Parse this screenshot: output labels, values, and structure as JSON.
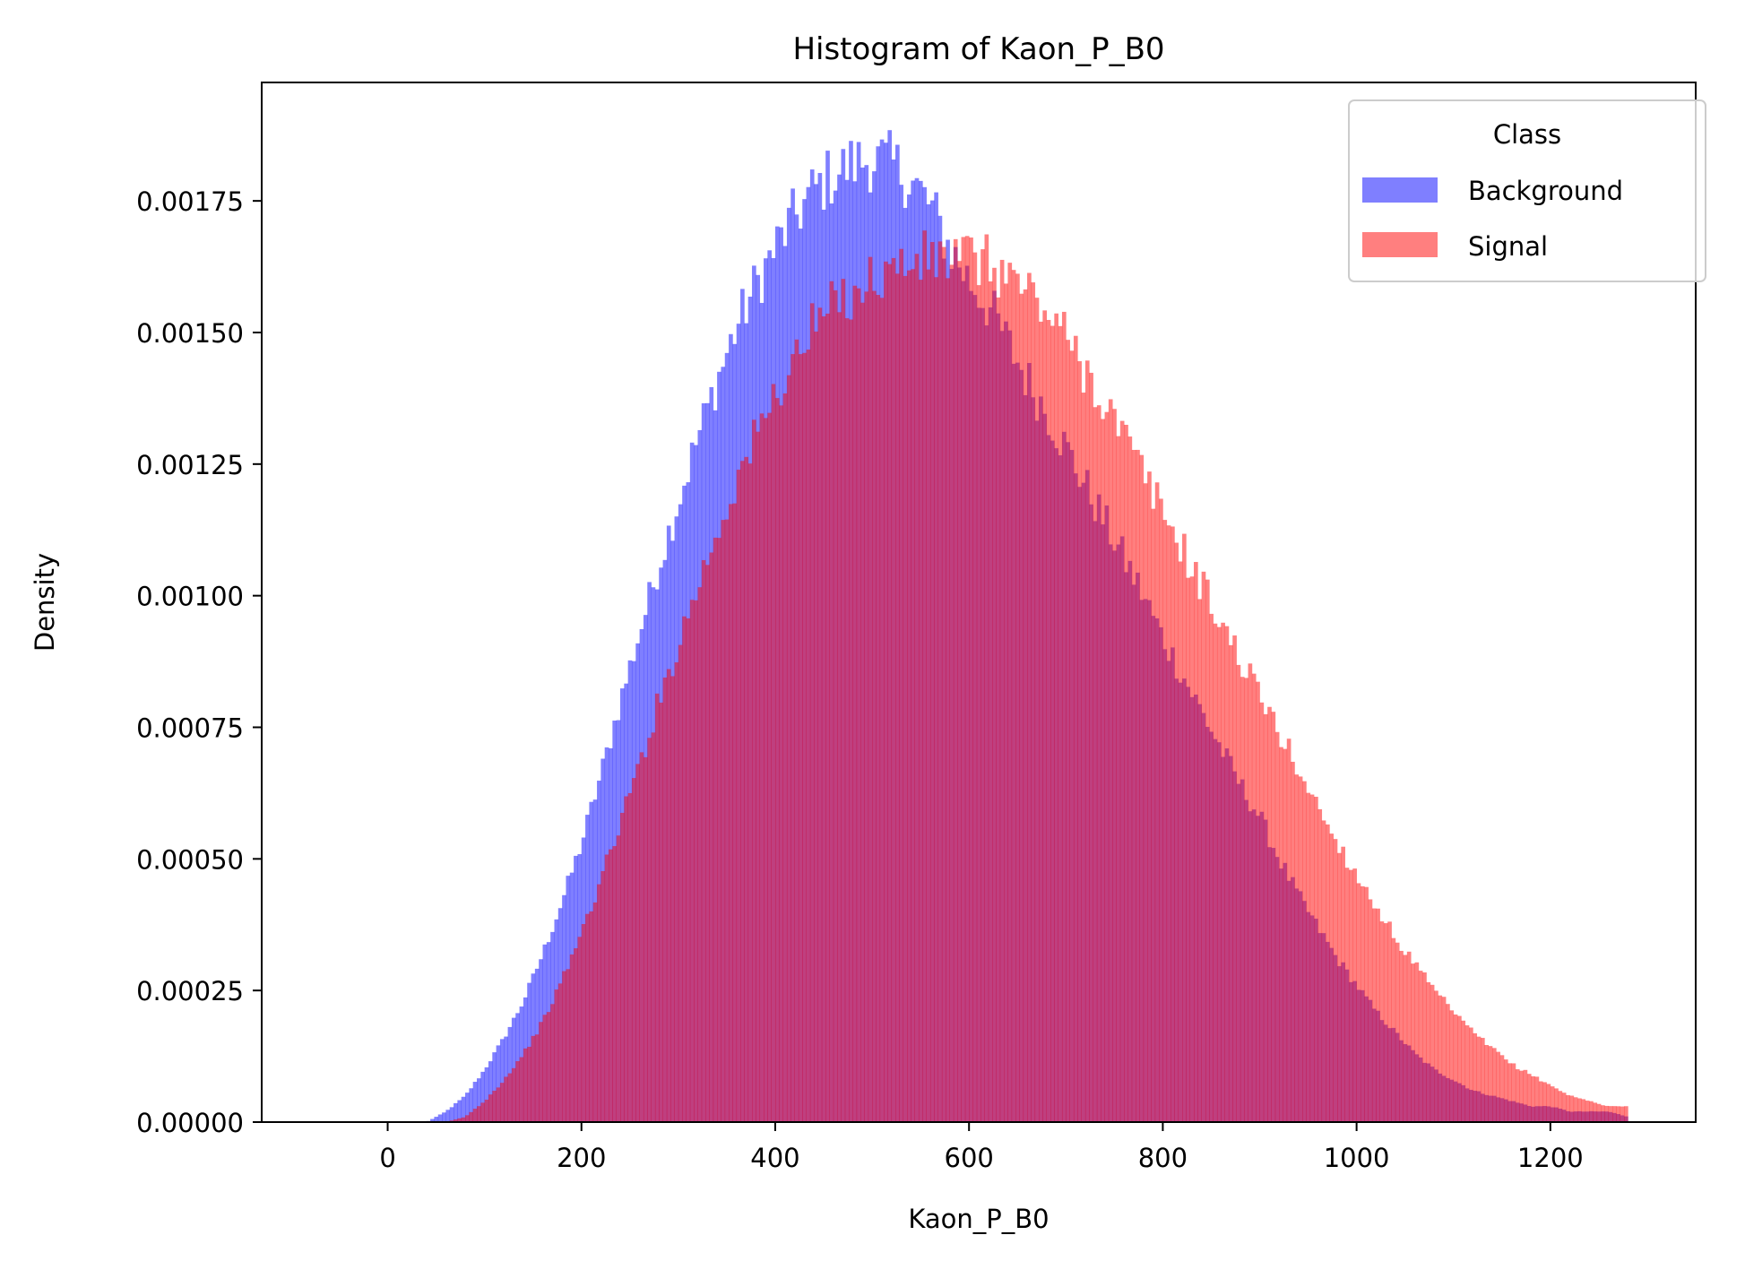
{
  "chart_data": {
    "type": "histogram",
    "title": "Histogram of Kaon_P_B0",
    "xlabel": "Kaon_P_B0",
    "ylabel": "Density",
    "xlim": [
      -130,
      1350
    ],
    "ylim": [
      0,
      0.001975
    ],
    "x_ticks": [
      0,
      200,
      400,
      600,
      800,
      1000,
      1200
    ],
    "x_tick_labels": [
      "0",
      "200",
      "400",
      "600",
      "800",
      "1000",
      "1200"
    ],
    "y_ticks": [
      0,
      0.00025,
      0.0005,
      0.00075,
      0.001,
      0.00125,
      0.0015,
      0.00175
    ],
    "y_tick_labels": [
      "0.00000",
      "0.00025",
      "0.00050",
      "0.00075",
      "0.00100",
      "0.00125",
      "0.00150",
      "0.00175"
    ],
    "grid": false,
    "legend": {
      "title": "Class",
      "placement": "top-right"
    },
    "bin_edges_range": [
      0,
      1280
    ],
    "series": [
      {
        "name": "Background",
        "color": "#0000ff",
        "alpha": 0.5,
        "x": [
          40,
          60,
          80,
          100,
          120,
          140,
          160,
          180,
          200,
          220,
          240,
          260,
          280,
          300,
          320,
          340,
          360,
          380,
          400,
          420,
          440,
          460,
          480,
          500,
          520,
          540,
          560,
          580,
          600,
          620,
          640,
          660,
          680,
          700,
          720,
          740,
          760,
          780,
          800,
          820,
          840,
          860,
          880,
          900,
          920,
          940,
          960,
          980,
          1000,
          1020,
          1040,
          1060,
          1080,
          1100,
          1120,
          1140,
          1160,
          1180,
          1200,
          1220,
          1240,
          1260,
          1280
        ],
        "values": [
          0.0,
          2e-05,
          5e-05,
          0.0001,
          0.00016,
          0.00023,
          0.00032,
          0.00042,
          0.00053,
          0.00066,
          0.0008,
          0.00093,
          0.00106,
          0.00118,
          0.0013,
          0.00141,
          0.00151,
          0.00159,
          0.00166,
          0.00172,
          0.00177,
          0.0018,
          0.00182,
          0.00183,
          0.00182,
          0.00179,
          0.00174,
          0.00166,
          0.0016,
          0.00155,
          0.00148,
          0.00141,
          0.00135,
          0.00128,
          0.00121,
          0.00114,
          0.00107,
          0.001,
          0.00092,
          0.00085,
          0.00078,
          0.00071,
          0.00064,
          0.00058,
          0.0005,
          0.00043,
          0.00037,
          0.00031,
          0.00026,
          0.00021,
          0.00017,
          0.00013,
          0.0001,
          8e-05,
          6e-05,
          5e-05,
          4e-05,
          3e-05,
          3e-05,
          2e-05,
          2e-05,
          2e-05,
          1e-05
        ]
      },
      {
        "name": "Signal",
        "color": "#ff0000",
        "alpha": 0.5,
        "x": [
          60,
          80,
          100,
          120,
          140,
          160,
          180,
          200,
          220,
          240,
          260,
          280,
          300,
          320,
          340,
          360,
          380,
          400,
          420,
          440,
          460,
          480,
          500,
          520,
          540,
          560,
          580,
          600,
          620,
          640,
          660,
          680,
          700,
          720,
          740,
          760,
          780,
          800,
          820,
          840,
          860,
          880,
          900,
          920,
          940,
          960,
          980,
          1000,
          1020,
          1040,
          1060,
          1080,
          1100,
          1120,
          1140,
          1160,
          1180,
          1200,
          1220,
          1240,
          1260,
          1280
        ],
        "values": [
          0.0,
          1e-05,
          4e-05,
          8e-05,
          0.00013,
          0.00019,
          0.00027,
          0.00036,
          0.00046,
          0.00057,
          0.00068,
          0.0008,
          0.00091,
          0.00102,
          0.00112,
          0.00122,
          0.0013,
          0.00138,
          0.00145,
          0.00151,
          0.00155,
          0.00158,
          0.0016,
          0.00162,
          0.00163,
          0.00164,
          0.00164,
          0.00164,
          0.00163,
          0.00161,
          0.00158,
          0.00154,
          0.00149,
          0.00143,
          0.00137,
          0.0013,
          0.00123,
          0.00116,
          0.00109,
          0.00102,
          0.00095,
          0.00088,
          0.00081,
          0.00074,
          0.00067,
          0.0006,
          0.00053,
          0.00047,
          0.00041,
          0.00035,
          0.0003,
          0.00025,
          0.00021,
          0.00017,
          0.00014,
          0.00011,
          9e-05,
          7e-05,
          5e-05,
          4e-05,
          3e-05,
          3e-05
        ]
      }
    ]
  }
}
